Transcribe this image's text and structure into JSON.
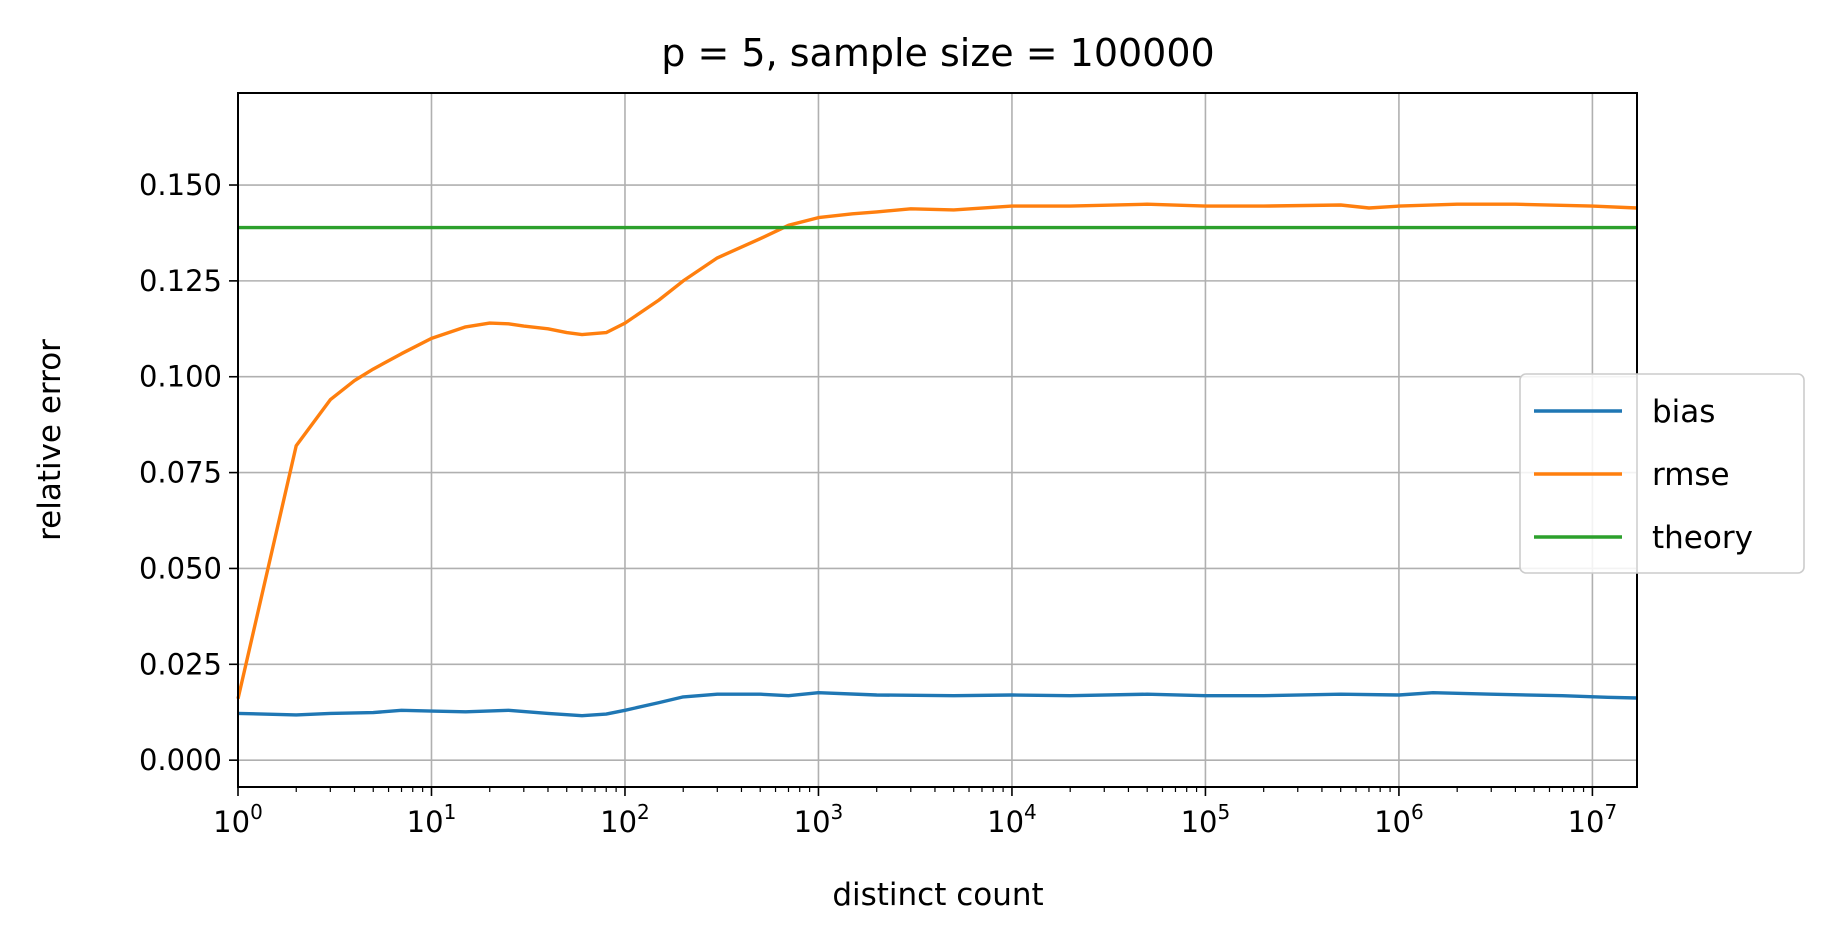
{
  "chart_data": {
    "type": "line",
    "title": "p = 5, sample size = 100000",
    "xlabel": "distinct count",
    "ylabel": "relative error",
    "xscale": "log",
    "xlim": [
      1,
      17000000
    ],
    "ylim": [
      -0.007,
      0.174
    ],
    "grid": true,
    "legend_position": "right",
    "x_ticks": [
      {
        "base": "10",
        "exp": "0",
        "value": 1
      },
      {
        "base": "10",
        "exp": "1",
        "value": 10
      },
      {
        "base": "10",
        "exp": "2",
        "value": 100
      },
      {
        "base": "10",
        "exp": "3",
        "value": 1000
      },
      {
        "base": "10",
        "exp": "4",
        "value": 10000
      },
      {
        "base": "10",
        "exp": "5",
        "value": 100000
      },
      {
        "base": "10",
        "exp": "6",
        "value": 1000000
      },
      {
        "base": "10",
        "exp": "7",
        "value": 10000000
      }
    ],
    "y_ticks": [
      {
        "label": "0.000",
        "value": 0.0
      },
      {
        "label": "0.025",
        "value": 0.025
      },
      {
        "label": "0.050",
        "value": 0.05
      },
      {
        "label": "0.075",
        "value": 0.075
      },
      {
        "label": "0.100",
        "value": 0.1
      },
      {
        "label": "0.125",
        "value": 0.125
      },
      {
        "label": "0.150",
        "value": 0.15
      }
    ],
    "series": [
      {
        "name": "bias",
        "color": "#1f77b4",
        "x": [
          1,
          2,
          3,
          5,
          7,
          10,
          15,
          25,
          40,
          60,
          80,
          100,
          150,
          200,
          300,
          500,
          700,
          1000,
          2000,
          5000,
          10000,
          20000,
          50000,
          100000,
          200000,
          500000,
          1000000,
          1500000,
          3000000,
          7000000,
          12000000,
          17000000
        ],
        "y": [
          0.0122,
          0.0118,
          0.0122,
          0.0124,
          0.013,
          0.0128,
          0.0126,
          0.013,
          0.0122,
          0.0116,
          0.012,
          0.013,
          0.015,
          0.0165,
          0.0172,
          0.0172,
          0.0168,
          0.0176,
          0.017,
          0.0168,
          0.017,
          0.0168,
          0.0172,
          0.0168,
          0.0168,
          0.0172,
          0.017,
          0.0176,
          0.0172,
          0.0168,
          0.0164,
          0.0162
        ]
      },
      {
        "name": "rmse",
        "color": "#ff7f0e",
        "x": [
          1,
          2,
          3,
          4,
          5,
          7,
          10,
          15,
          20,
          25,
          30,
          40,
          50,
          60,
          80,
          100,
          150,
          200,
          300,
          500,
          700,
          1000,
          1500,
          2000,
          3000,
          5000,
          10000,
          20000,
          50000,
          100000,
          200000,
          500000,
          700000,
          1000000,
          2000000,
          4000000,
          10000000,
          17000000
        ],
        "y": [
          0.016,
          0.082,
          0.094,
          0.099,
          0.102,
          0.106,
          0.11,
          0.113,
          0.114,
          0.1138,
          0.1132,
          0.1125,
          0.1115,
          0.111,
          0.1115,
          0.114,
          0.12,
          0.125,
          0.131,
          0.136,
          0.1395,
          0.1415,
          0.1425,
          0.143,
          0.1438,
          0.1435,
          0.1445,
          0.1445,
          0.145,
          0.1445,
          0.1445,
          0.1448,
          0.144,
          0.1445,
          0.145,
          0.145,
          0.1445,
          0.144
        ]
      },
      {
        "name": "theory",
        "color": "#2ca02c",
        "x": [
          1,
          17000000
        ],
        "y": [
          0.1389,
          0.1389
        ]
      }
    ]
  }
}
